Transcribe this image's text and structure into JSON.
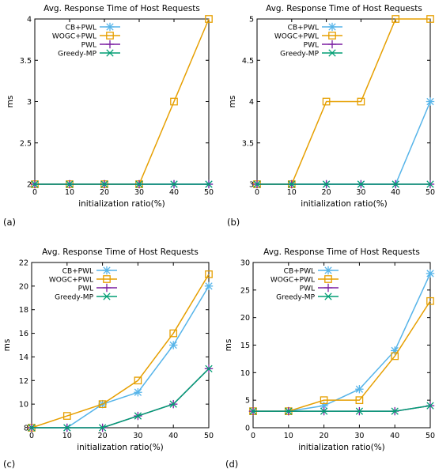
{
  "colors": {
    "CB+PWL": "#56b4e9",
    "WOGC+PWL": "#e69f00",
    "PWL": "#7b1fa2",
    "Greedy-MP": "#009e73",
    "axis": "#000000",
    "grid": "#000000",
    "background": "#ffffff"
  },
  "chart_data": [
    {
      "panel_label": "(a)",
      "type": "line",
      "title": "Avg. Response Time of Host Requests",
      "xlabel": "initialization ratio(%)",
      "ylabel": "ms",
      "x": [
        0,
        10,
        20,
        30,
        40,
        50
      ],
      "xticks": [
        "0",
        "10",
        "20",
        "30",
        "40",
        "50"
      ],
      "ylim": [
        2,
        4
      ],
      "yticks": [
        "2",
        "2.5",
        "3",
        "3.5",
        "4"
      ],
      "grid": false,
      "legend_position": "top-left",
      "series": [
        {
          "name": "CB+PWL",
          "marker": "asterisk",
          "values": [
            2,
            2,
            2,
            2,
            2,
            2
          ]
        },
        {
          "name": "WOGC+PWL",
          "marker": "square",
          "values": [
            2,
            2,
            2,
            2,
            3,
            4
          ]
        },
        {
          "name": "PWL",
          "marker": "plus",
          "values": [
            2,
            2,
            2,
            2,
            2,
            2
          ]
        },
        {
          "name": "Greedy-MP",
          "marker": "cross",
          "values": [
            2,
            2,
            2,
            2,
            2,
            2
          ]
        }
      ]
    },
    {
      "panel_label": "(b)",
      "type": "line",
      "title": "Avg. Response Time of Host Requests",
      "xlabel": "initialization ratio(%)",
      "ylabel": "ms",
      "x": [
        0,
        10,
        20,
        30,
        40,
        50
      ],
      "xticks": [
        "0",
        "10",
        "20",
        "30",
        "40",
        "50"
      ],
      "ylim": [
        3,
        5
      ],
      "yticks": [
        "3",
        "3.5",
        "4",
        "4.5",
        "5"
      ],
      "grid": false,
      "legend_position": "top-left",
      "series": [
        {
          "name": "CB+PWL",
          "marker": "asterisk",
          "values": [
            3,
            3,
            3,
            3,
            3,
            4
          ]
        },
        {
          "name": "WOGC+PWL",
          "marker": "square",
          "values": [
            3,
            3,
            4,
            4,
            5,
            5
          ]
        },
        {
          "name": "PWL",
          "marker": "plus",
          "values": [
            3,
            3,
            3,
            3,
            3,
            3
          ]
        },
        {
          "name": "Greedy-MP",
          "marker": "cross",
          "values": [
            3,
            3,
            3,
            3,
            3,
            3
          ]
        }
      ]
    },
    {
      "panel_label": "(c)",
      "type": "line",
      "title": "Avg. Response Time of Host Requests",
      "xlabel": "initialization ratio(%)",
      "ylabel": "ms",
      "x": [
        0,
        10,
        20,
        30,
        40,
        50
      ],
      "xticks": [
        "0",
        "10",
        "20",
        "30",
        "40",
        "50"
      ],
      "ylim": [
        8,
        22
      ],
      "yticks": [
        "8",
        "10",
        "12",
        "14",
        "16",
        "18",
        "20",
        "22"
      ],
      "grid": false,
      "legend_position": "top-left",
      "series": [
        {
          "name": "CB+PWL",
          "marker": "asterisk",
          "values": [
            8,
            8,
            10,
            11,
            15,
            20
          ]
        },
        {
          "name": "WOGC+PWL",
          "marker": "square",
          "values": [
            8,
            9,
            10,
            12,
            16,
            21
          ]
        },
        {
          "name": "PWL",
          "marker": "plus",
          "values": [
            8,
            8,
            8,
            9,
            10,
            13
          ]
        },
        {
          "name": "Greedy-MP",
          "marker": "cross",
          "values": [
            8,
            8,
            8,
            9,
            10,
            13
          ]
        }
      ]
    },
    {
      "panel_label": "(d)",
      "type": "line",
      "title": "Avg. Response Time of Host Requests",
      "xlabel": "initialization ratio(%)",
      "ylabel": "ms",
      "x": [
        0,
        10,
        20,
        30,
        40,
        50
      ],
      "xticks": [
        "0",
        "10",
        "20",
        "30",
        "40",
        "50"
      ],
      "ylim": [
        0,
        30
      ],
      "yticks": [
        "0",
        "5",
        "10",
        "15",
        "20",
        "25",
        "30"
      ],
      "grid": false,
      "legend_position": "top-left",
      "series": [
        {
          "name": "CB+PWL",
          "marker": "asterisk",
          "values": [
            3,
            3,
            4,
            7,
            14,
            28
          ]
        },
        {
          "name": "WOGC+PWL",
          "marker": "square",
          "values": [
            3,
            3,
            5,
            5,
            13,
            23
          ]
        },
        {
          "name": "PWL",
          "marker": "plus",
          "values": [
            3,
            3,
            3,
            3,
            3,
            4
          ]
        },
        {
          "name": "Greedy-MP",
          "marker": "cross",
          "values": [
            3,
            3,
            3,
            3,
            3,
            4
          ]
        }
      ]
    }
  ]
}
